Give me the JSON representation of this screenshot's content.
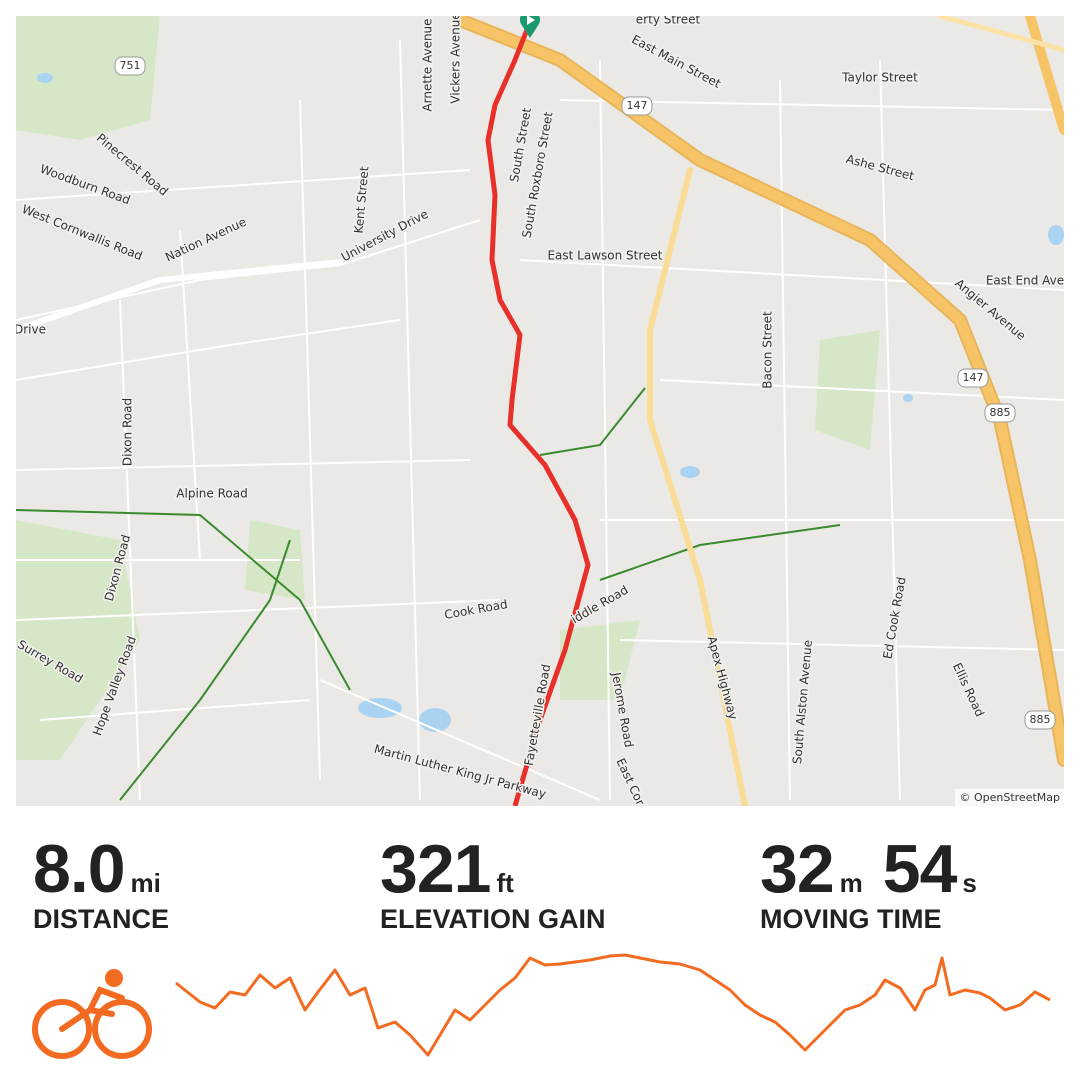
{
  "map": {
    "labels": [
      "erty Street",
      "751",
      "Arnette Avenue",
      "Vickers Avenue",
      "East Main Street",
      "Taylor Street",
      "147",
      "Pinecrest Road",
      "Woodburn Road",
      "South Street",
      "South Roxboro Street",
      "Ashe Street",
      "West Cornwallis Road",
      "Nation Avenue",
      "Kent Street",
      "University Drive",
      "East Lawson Street",
      "East End Ave",
      "Angier Avenue",
      "Drive",
      "Bacon Street",
      "147",
      "885",
      "Dixon Road",
      "Alpine Road",
      "Dixon Road",
      "Cook Road",
      "iddle Road",
      "Apex Highway",
      "Ed Cook Road",
      "Surrey Road",
      "Hope Valley Road",
      "South Alston Avenue",
      "Ellis Road",
      "885",
      "Jerome Road",
      "Fayetteville Road",
      "Martin Luther King Jr Parkway",
      "East Cor"
    ],
    "attribution": "© OpenStreetMap"
  },
  "stats": [
    {
      "parts": [
        {
          "value": "8.0",
          "unit": "mi"
        }
      ],
      "label": "DISTANCE"
    },
    {
      "parts": [
        {
          "value": "321",
          "unit": "ft"
        }
      ],
      "label": "ELEVATION GAIN"
    },
    {
      "parts": [
        {
          "value": "32",
          "unit": "m"
        },
        {
          "value": "54",
          "unit": "s"
        }
      ],
      "label": "MOVING TIME"
    }
  ]
}
